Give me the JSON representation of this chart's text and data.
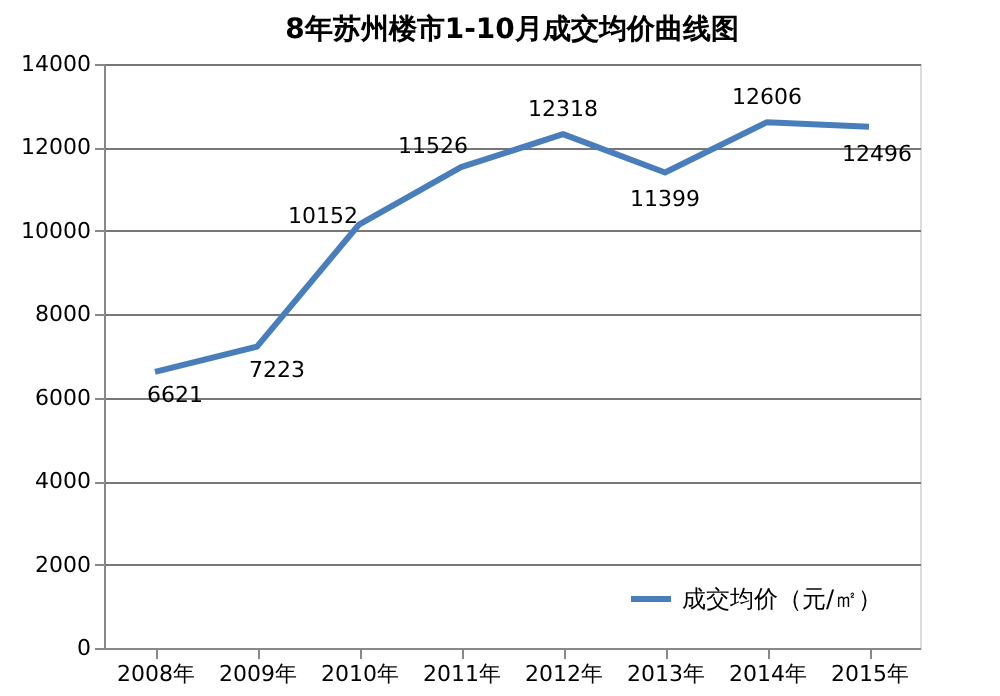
{
  "chart_data": {
    "type": "line",
    "title": "8年苏州楼市1-10月成交均价曲线图",
    "categories": [
      "2008年",
      "2009年",
      "2010年",
      "2011年",
      "2012年",
      "2013年",
      "2014年",
      "2015年"
    ],
    "series": [
      {
        "name": "成交均价（元/㎡）",
        "color": "#4a7ebb",
        "values": [
          6621,
          7223,
          10152,
          11526,
          12318,
          11399,
          12606,
          12496
        ]
      }
    ],
    "ylim": [
      0,
      14000
    ],
    "yticks": [
      0,
      2000,
      4000,
      6000,
      8000,
      10000,
      12000,
      14000
    ],
    "grid": "y",
    "legend": "bottom right",
    "data_labels": true,
    "marker": "none",
    "line_style": "solid"
  }
}
